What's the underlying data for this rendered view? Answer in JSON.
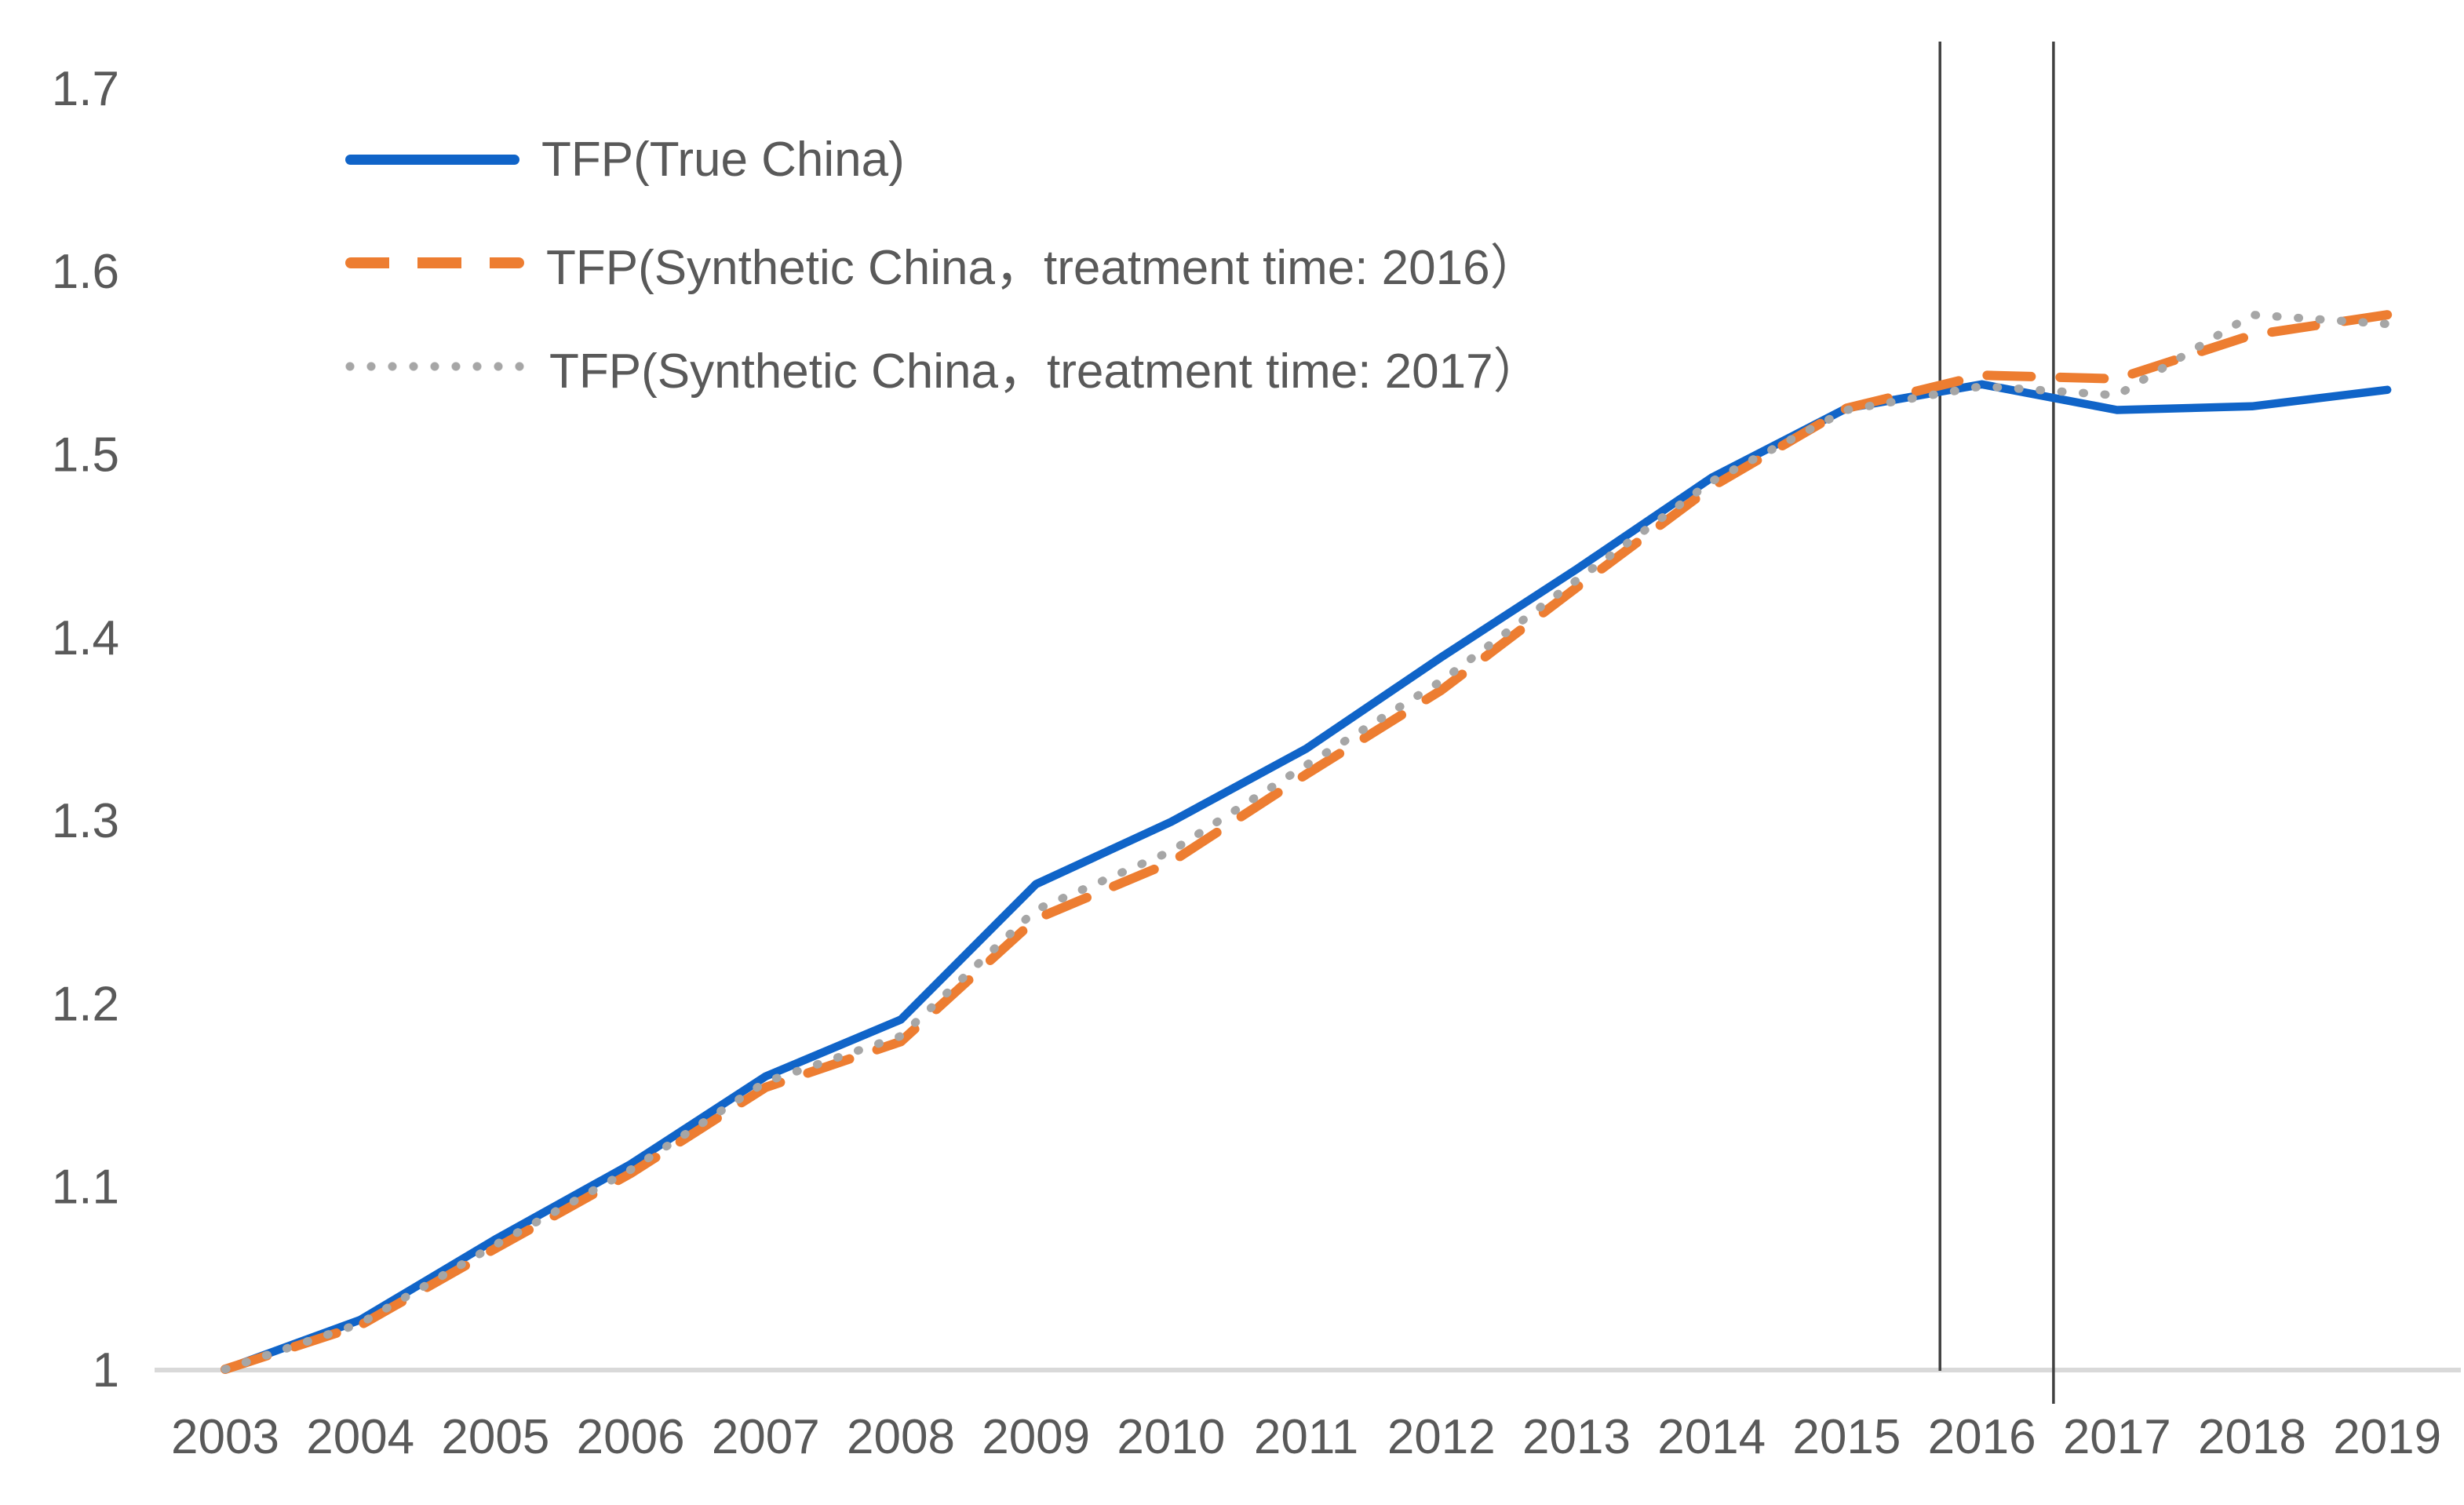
{
  "chart_data": {
    "type": "line",
    "x": [
      2003,
      2004,
      2005,
      2006,
      2007,
      2008,
      2009,
      2010,
      2011,
      2012,
      2013,
      2014,
      2015,
      2016,
      2017,
      2018,
      2019
    ],
    "series": [
      {
        "name": "TFP(True China)",
        "color": "#1064C8",
        "style": "solid",
        "values": [
          1.0,
          1.027,
          1.071,
          1.112,
          1.16,
          1.191,
          1.265,
          1.299,
          1.339,
          1.389,
          1.437,
          1.487,
          1.525,
          1.538,
          1.524,
          1.526,
          1.535
        ]
      },
      {
        "name": "TFP(Synthetic China，treatment time: 2016）",
        "color": "#ED7D31",
        "style": "dashed",
        "values": [
          1.0,
          1.024,
          1.066,
          1.107,
          1.154,
          1.179,
          1.246,
          1.277,
          1.325,
          1.371,
          1.427,
          1.482,
          1.525,
          1.543,
          1.541,
          1.565,
          1.576
        ]
      },
      {
        "name": "TFP(Synthetic China，treatment time: 2017）",
        "color": "#A6A6A6",
        "style": "dotted",
        "values": [
          1.0,
          1.025,
          1.068,
          1.109,
          1.157,
          1.182,
          1.251,
          1.283,
          1.33,
          1.376,
          1.431,
          1.485,
          1.524,
          1.537,
          1.532,
          1.576,
          1.571
        ]
      }
    ],
    "title": "",
    "xlabel": "",
    "ylabel": "",
    "ylim": [
      1.0,
      1.7
    ],
    "yticks": [
      "1",
      "1.1",
      "1.2",
      "1.3",
      "1.4",
      "1.5",
      "1.6",
      "1.7"
    ],
    "xticks": [
      "2003",
      "2004",
      "2005",
      "2006",
      "2007",
      "2008",
      "2009",
      "2010",
      "2011",
      "2012",
      "2013",
      "2014",
      "2015",
      "2016",
      "2017",
      "2018",
      "2019"
    ],
    "grid": false,
    "legend_position": "inside-top-left",
    "vertical_lines": [
      {
        "x": 2015.69,
        "color": "#404040"
      },
      {
        "x": 2016.53,
        "color": "#404040"
      }
    ],
    "axis_color": "#D9D9D9",
    "tick_color": "#595959"
  }
}
